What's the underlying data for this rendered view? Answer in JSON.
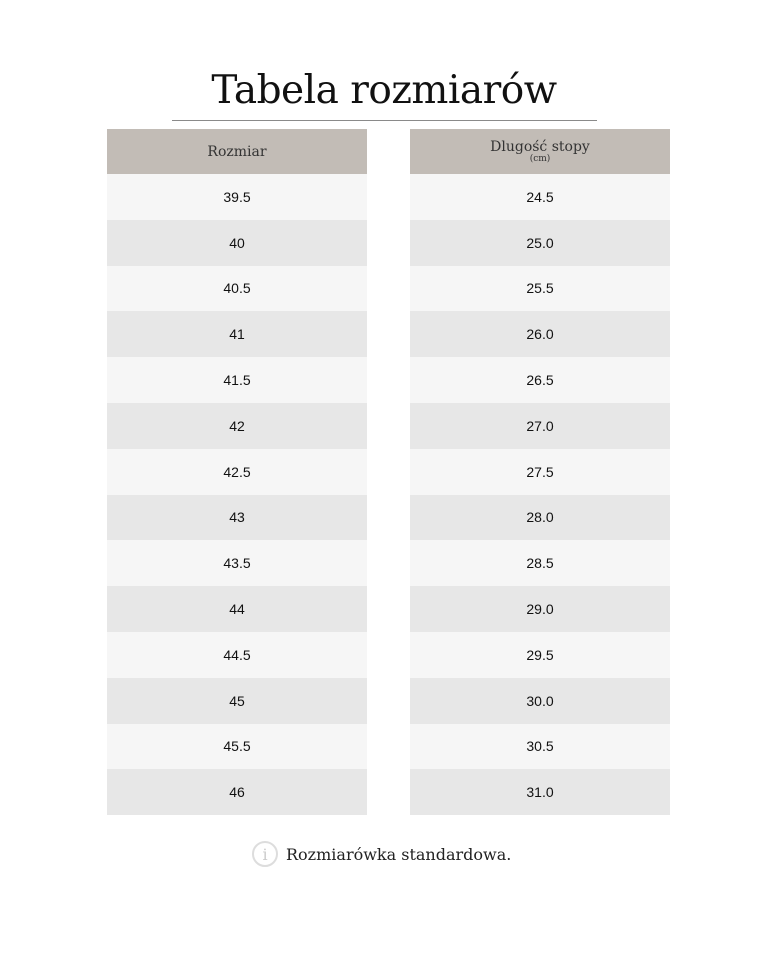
{
  "title": "Tabela rozmiarów",
  "columns": [
    {
      "header": "Rozmiar",
      "unit": ""
    },
    {
      "header": "Dlugość stopy",
      "unit": "(cm)"
    }
  ],
  "rows": [
    [
      "39.5",
      "24.5"
    ],
    [
      "40",
      "25.0"
    ],
    [
      "40.5",
      "25.5"
    ],
    [
      "41",
      "26.0"
    ],
    [
      "41.5",
      "26.5"
    ],
    [
      "42",
      "27.0"
    ],
    [
      "42.5",
      "27.5"
    ],
    [
      "43",
      "28.0"
    ],
    [
      "43.5",
      "28.5"
    ],
    [
      "44",
      "29.0"
    ],
    [
      "44.5",
      "29.5"
    ],
    [
      "45",
      "30.0"
    ],
    [
      "45.5",
      "30.5"
    ],
    [
      "46",
      "31.0"
    ]
  ],
  "note": {
    "icon": "info-icon",
    "text": "Rozmiarówka standardowa."
  },
  "colors": {
    "header_bg": "#c2bcb6",
    "row_light": "#f6f6f6",
    "row_dark": "#e7e7e7"
  }
}
